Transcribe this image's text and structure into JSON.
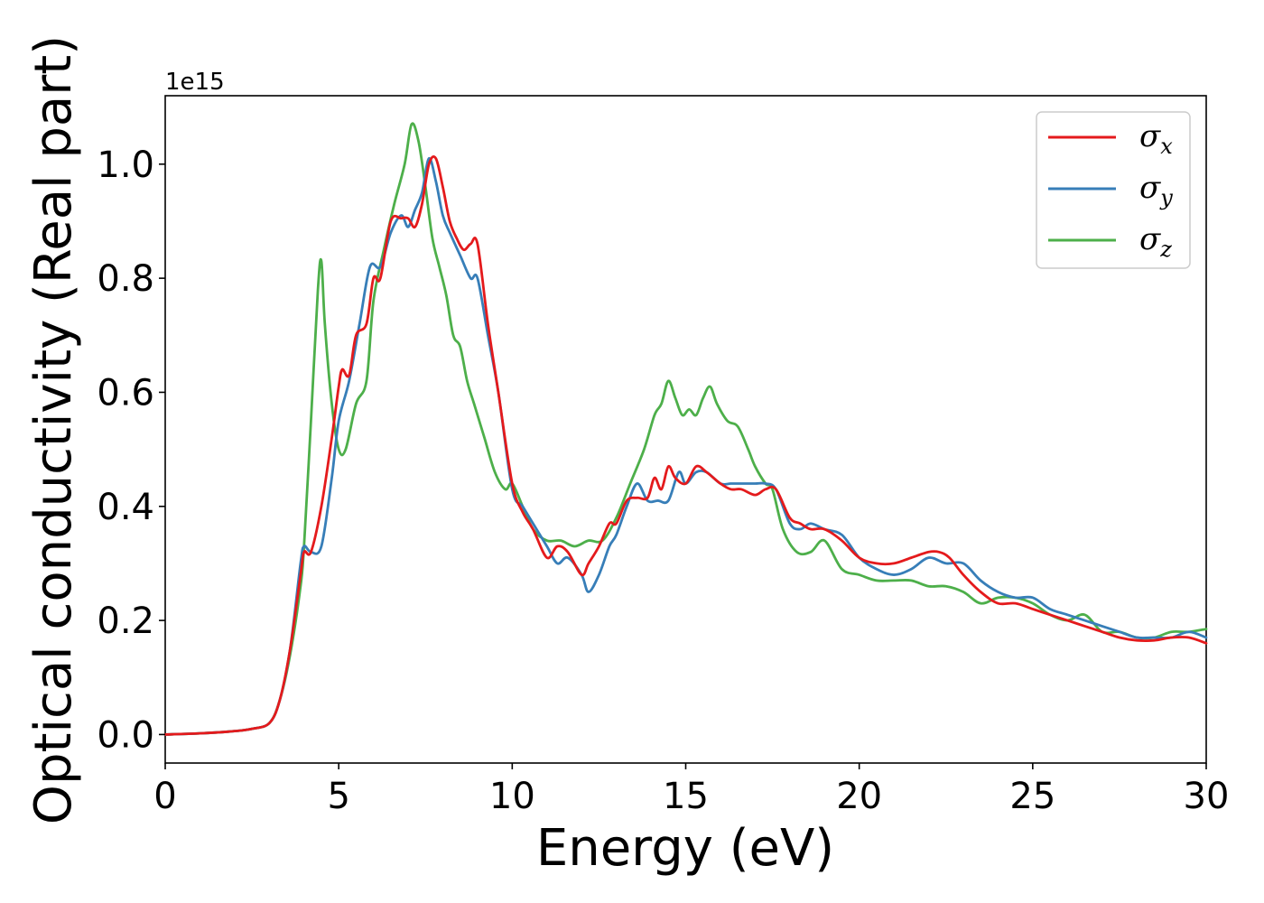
{
  "chart_data": {
    "type": "line",
    "xlabel": "Energy (eV)",
    "ylabel": "Optical conductivity (Real part)",
    "y_offset_label": "1e15",
    "xlim": [
      0,
      30
    ],
    "ylim": [
      -0.05,
      1.12
    ],
    "xticks": [
      0,
      5,
      10,
      15,
      20,
      25,
      30
    ],
    "yticks": [
      0.0,
      0.2,
      0.4,
      0.6,
      0.8,
      1.0
    ],
    "ytick_labels": [
      "0.0",
      "0.2",
      "0.4",
      "0.6",
      "0.8",
      "1.0"
    ],
    "grid": false,
    "legend_position": "top-right",
    "series": [
      {
        "name": "σx",
        "symbol": "σ",
        "subscript": "x",
        "color": "#e41a1c",
        "x": [
          0,
          1,
          2,
          2.5,
          3,
          3.3,
          3.6,
          3.9,
          4.0,
          4.2,
          4.5,
          4.8,
          5.0,
          5.1,
          5.3,
          5.5,
          5.8,
          6.0,
          6.2,
          6.5,
          6.8,
          7.0,
          7.2,
          7.4,
          7.6,
          7.8,
          8.0,
          8.2,
          8.4,
          8.6,
          8.8,
          9.0,
          9.3,
          9.6,
          10.0,
          10.3,
          10.6,
          11.0,
          11.3,
          11.6,
          12.0,
          12.2,
          12.5,
          12.8,
          13.0,
          13.3,
          13.6,
          13.9,
          14.1,
          14.3,
          14.5,
          14.7,
          15.0,
          15.3,
          15.6,
          16.0,
          16.3,
          16.6,
          17.0,
          17.3,
          17.6,
          18.0,
          18.3,
          18.6,
          19.0,
          19.5,
          20.0,
          20.5,
          21.0,
          21.5,
          22.0,
          22.3,
          22.6,
          23.0,
          23.5,
          24.0,
          24.5,
          25.0,
          25.5,
          26.0,
          26.5,
          27.0,
          27.5,
          28.0,
          28.5,
          29.0,
          29.5,
          30.0
        ],
        "y": [
          0.0,
          0.002,
          0.006,
          0.01,
          0.02,
          0.06,
          0.15,
          0.28,
          0.32,
          0.32,
          0.4,
          0.52,
          0.61,
          0.64,
          0.63,
          0.7,
          0.72,
          0.8,
          0.8,
          0.9,
          0.905,
          0.905,
          0.89,
          0.93,
          1.0,
          1.01,
          0.96,
          0.9,
          0.87,
          0.85,
          0.86,
          0.86,
          0.72,
          0.6,
          0.44,
          0.39,
          0.36,
          0.31,
          0.33,
          0.32,
          0.28,
          0.3,
          0.33,
          0.37,
          0.37,
          0.41,
          0.415,
          0.415,
          0.45,
          0.43,
          0.47,
          0.45,
          0.44,
          0.47,
          0.46,
          0.44,
          0.43,
          0.43,
          0.42,
          0.43,
          0.43,
          0.38,
          0.37,
          0.36,
          0.36,
          0.34,
          0.31,
          0.3,
          0.3,
          0.31,
          0.32,
          0.32,
          0.31,
          0.28,
          0.25,
          0.23,
          0.23,
          0.22,
          0.21,
          0.2,
          0.19,
          0.18,
          0.17,
          0.165,
          0.165,
          0.17,
          0.17,
          0.16
        ]
      },
      {
        "name": "σy",
        "symbol": "σ",
        "subscript": "y",
        "color": "#377eb8",
        "x": [
          0,
          1,
          2,
          2.5,
          3,
          3.3,
          3.6,
          3.9,
          4.0,
          4.2,
          4.5,
          4.8,
          5.0,
          5.3,
          5.6,
          5.9,
          6.2,
          6.5,
          6.8,
          7.0,
          7.2,
          7.4,
          7.6,
          7.8,
          8.0,
          8.2,
          8.5,
          8.8,
          9.0,
          9.3,
          9.6,
          10.0,
          10.3,
          10.6,
          11.0,
          11.3,
          11.6,
          12.0,
          12.2,
          12.5,
          12.8,
          13.0,
          13.3,
          13.6,
          13.9,
          14.2,
          14.5,
          14.8,
          15.0,
          15.3,
          15.6,
          16.0,
          16.3,
          16.6,
          17.0,
          17.3,
          17.6,
          18.0,
          18.3,
          18.6,
          19.0,
          19.5,
          20.0,
          20.5,
          21.0,
          21.5,
          22.0,
          22.5,
          23.0,
          23.5,
          24.0,
          24.5,
          25.0,
          25.5,
          26.0,
          26.5,
          27.0,
          27.5,
          28.0,
          28.5,
          29.0,
          29.5,
          30.0
        ],
        "y": [
          0.0,
          0.002,
          0.006,
          0.01,
          0.02,
          0.06,
          0.15,
          0.3,
          0.33,
          0.32,
          0.33,
          0.45,
          0.55,
          0.62,
          0.72,
          0.82,
          0.82,
          0.88,
          0.91,
          0.89,
          0.92,
          0.95,
          1.01,
          0.97,
          0.91,
          0.88,
          0.84,
          0.8,
          0.8,
          0.7,
          0.6,
          0.43,
          0.4,
          0.37,
          0.33,
          0.3,
          0.31,
          0.28,
          0.25,
          0.28,
          0.33,
          0.35,
          0.4,
          0.44,
          0.41,
          0.41,
          0.41,
          0.46,
          0.44,
          0.46,
          0.46,
          0.44,
          0.44,
          0.44,
          0.44,
          0.44,
          0.43,
          0.37,
          0.36,
          0.37,
          0.36,
          0.35,
          0.31,
          0.29,
          0.28,
          0.29,
          0.31,
          0.3,
          0.3,
          0.27,
          0.25,
          0.24,
          0.24,
          0.22,
          0.21,
          0.2,
          0.19,
          0.18,
          0.17,
          0.17,
          0.17,
          0.18,
          0.17
        ]
      },
      {
        "name": "σz",
        "symbol": "σ",
        "subscript": "z",
        "color": "#4daf4a",
        "x": [
          0,
          1,
          2,
          2.5,
          3,
          3.3,
          3.6,
          3.9,
          4.0,
          4.2,
          4.4,
          4.5,
          4.6,
          4.8,
          5.0,
          5.2,
          5.5,
          5.8,
          6.0,
          6.3,
          6.6,
          6.9,
          7.1,
          7.3,
          7.5,
          7.7,
          7.9,
          8.1,
          8.3,
          8.5,
          8.7,
          8.9,
          9.2,
          9.5,
          9.8,
          10.0,
          10.3,
          10.6,
          11.0,
          11.4,
          11.8,
          12.2,
          12.6,
          13.0,
          13.4,
          13.8,
          14.1,
          14.3,
          14.5,
          14.7,
          14.9,
          15.1,
          15.3,
          15.5,
          15.7,
          15.9,
          16.2,
          16.5,
          16.8,
          17.0,
          17.3,
          17.5,
          17.8,
          18.2,
          18.6,
          19.0,
          19.5,
          20.0,
          20.5,
          21.0,
          21.5,
          22.0,
          22.5,
          23.0,
          23.5,
          24.0,
          24.5,
          25.0,
          25.5,
          26.0,
          26.5,
          27.0,
          27.5,
          28.0,
          28.5,
          29.0,
          29.5,
          30.0
        ],
        "y": [
          0.0,
          0.002,
          0.006,
          0.01,
          0.02,
          0.06,
          0.14,
          0.26,
          0.33,
          0.55,
          0.78,
          0.83,
          0.72,
          0.58,
          0.5,
          0.5,
          0.58,
          0.62,
          0.76,
          0.85,
          0.93,
          1.0,
          1.07,
          1.04,
          0.96,
          0.87,
          0.82,
          0.77,
          0.7,
          0.68,
          0.62,
          0.58,
          0.52,
          0.46,
          0.43,
          0.44,
          0.4,
          0.36,
          0.34,
          0.34,
          0.33,
          0.34,
          0.34,
          0.38,
          0.44,
          0.5,
          0.56,
          0.58,
          0.62,
          0.59,
          0.56,
          0.57,
          0.56,
          0.59,
          0.61,
          0.58,
          0.55,
          0.54,
          0.5,
          0.47,
          0.44,
          0.43,
          0.36,
          0.32,
          0.32,
          0.34,
          0.29,
          0.28,
          0.27,
          0.27,
          0.27,
          0.26,
          0.26,
          0.25,
          0.23,
          0.24,
          0.24,
          0.23,
          0.21,
          0.2,
          0.21,
          0.18,
          0.18,
          0.17,
          0.17,
          0.18,
          0.18,
          0.185
        ]
      }
    ]
  }
}
